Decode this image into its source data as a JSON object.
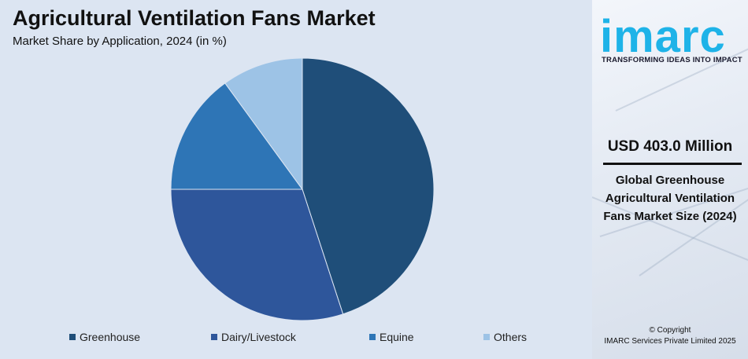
{
  "header": {
    "title": "Agricultural Ventilation Fans Market",
    "subtitle": "Market Share by Application, 2024 (in %)"
  },
  "chart_data": {
    "type": "pie",
    "title": "Agricultural Ventilation Fans Market",
    "subtitle": "Market Share by Application, 2024 (in %)",
    "categories": [
      "Greenhouse",
      "Dairy/Livestock",
      "Equine",
      "Others"
    ],
    "values": [
      45,
      30,
      15,
      10
    ],
    "colors": [
      "#1f4e79",
      "#2e569b",
      "#2e75b6",
      "#9dc3e6"
    ],
    "start_angle_deg": 0,
    "direction": "clockwise",
    "legend": "bottom"
  },
  "sidebar": {
    "logo_text": "imarc",
    "tagline": "TRANSFORMING IDEAS INTO IMPACT",
    "market_value": "USD 403.0 Million",
    "market_desc": "Global Greenhouse Agricultural Ventilation Fans Market Size (2024)",
    "copyright_line1": "© Copyright",
    "copyright_line2": "IMARC Services Private Limited 2025",
    "brand_color": "#1eb3e8"
  }
}
